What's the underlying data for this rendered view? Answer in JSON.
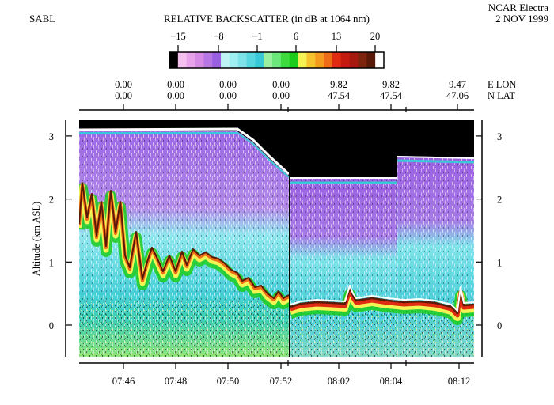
{
  "header": {
    "instrument": "SABL",
    "title": "RELATIVE BACKSCATTER (in dB at 1064 nm)",
    "platform": "NCAR Electra",
    "date": "2 NOV 1999"
  },
  "colorbar": {
    "tick_labels": [
      "−15",
      "−8",
      "−1",
      "6",
      "13",
      "20"
    ],
    "colors": [
      "#000000",
      "#f5bff0",
      "#e8a2ea",
      "#d58ae4",
      "#b777e3",
      "#9a5fe0",
      "#bff4f4",
      "#9feef2",
      "#7fe3ea",
      "#57d7df",
      "#39c9d6",
      "#9bf0a0",
      "#6be77b",
      "#3ddb3b",
      "#1ccc1c",
      "#f3f354",
      "#f5c42d",
      "#f29b1d",
      "#ee6c16",
      "#e02b12",
      "#c41a10",
      "#a6190e",
      "#7d240c",
      "#5a1a08",
      "#ffffff"
    ]
  },
  "top_axis": {
    "lon_label": "E  LON",
    "lat_label": "N  LAT",
    "ticks": [
      {
        "lon": "0.00",
        "lat": "0.00"
      },
      {
        "lon": "0.00",
        "lat": "0.00"
      },
      {
        "lon": "0.00",
        "lat": "0.00"
      },
      {
        "lon": "0.00",
        "lat": "0.00"
      },
      {
        "lon": "9.82",
        "lat": "47.54"
      },
      {
        "lon": "9.82",
        "lat": "47.54"
      },
      {
        "lon": "9.47",
        "lat": "47.06"
      }
    ]
  },
  "chart_data": {
    "type": "heatmap",
    "title": "RELATIVE BACKSCATTER (in dB at 1064 nm)",
    "ylabel": "Altitude (km ASL)",
    "xlabel": "",
    "x_ticks": [
      "07:46",
      "07:48",
      "07:50",
      "07:52",
      "08:02",
      "08:04",
      "08:12"
    ],
    "y_ticks": [
      0,
      1,
      2,
      3
    ],
    "ylim": [
      -0.5,
      3.2
    ],
    "colorbar_range_db": [
      -15,
      20
    ],
    "segments": [
      {
        "label": "07:44–07:52",
        "aircraft_altitude_km": 3.05,
        "top_km": 3.05
      },
      {
        "label": "08:01–08:05",
        "aircraft_altitude_km": 2.3,
        "top_km": 2.3
      },
      {
        "label": "08:05–08:13",
        "aircraft_altitude_km": 2.65,
        "top_km": 2.65
      }
    ],
    "boundary_layer_top_km": [
      {
        "x": "07:45",
        "y": 1.6
      },
      {
        "x": "07:46",
        "y": 1.1
      },
      {
        "x": "07:47",
        "y": 0.6
      },
      {
        "x": "07:48",
        "y": 0.8
      },
      {
        "x": "07:49",
        "y": 1.0
      },
      {
        "x": "07:50",
        "y": 0.7
      },
      {
        "x": "07:51",
        "y": 0.55
      },
      {
        "x": "07:52",
        "y": 0.4
      },
      {
        "x": "08:02",
        "y": 0.3
      },
      {
        "x": "08:04",
        "y": 0.28
      },
      {
        "x": "08:12",
        "y": 0.25
      }
    ]
  }
}
